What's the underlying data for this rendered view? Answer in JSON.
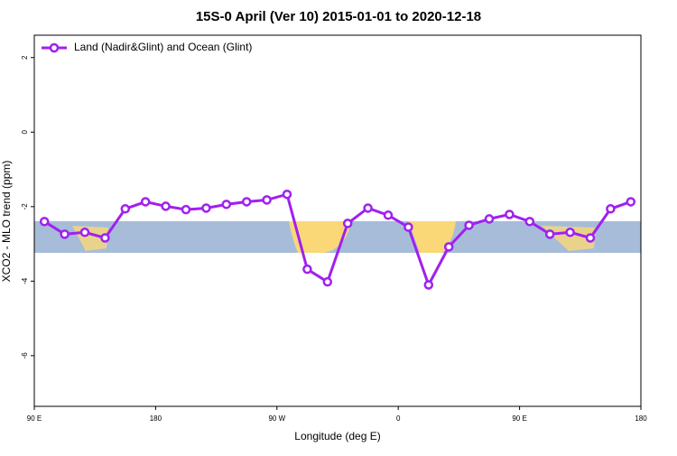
{
  "chart_data": {
    "type": "line",
    "title": "15S-0 April (Ver 10)   2015-01-01 to 2020-12-18",
    "x_label": "Longitude (deg E)",
    "y_label": "XCO2 - MLO trend (ppm)",
    "x": [
      97.5,
      112.5,
      127.5,
      142.5,
      157.5,
      172.5,
      187.5,
      202.5,
      217.5,
      232.5,
      247.5,
      262.5,
      277.5,
      292.5,
      307.5,
      322.5,
      337.5,
      352.5,
      367.5,
      382.5,
      397.5,
      412.5,
      427.5,
      442.5,
      457.5,
      472.5,
      487.5,
      502.5,
      517.5,
      532.5
    ],
    "series": [
      {
        "name": "Land (Nadir&Glint) and Ocean (Glint)",
        "color": "#a020f0",
        "values": [
          -2.4,
          -2.74,
          -2.69,
          -2.84,
          -2.06,
          -1.87,
          -1.99,
          -2.08,
          -2.04,
          -1.94,
          -1.87,
          -1.82,
          -1.67,
          -3.68,
          -4.02,
          -2.45,
          -2.04,
          -2.23,
          -2.55,
          -4.1,
          -3.08,
          -2.5,
          -2.33,
          -2.21,
          -2.4,
          -2.74,
          -2.69,
          -2.84,
          -2.06,
          -1.87
        ]
      }
    ],
    "xlim": [
      90,
      540
    ],
    "xticks": [
      {
        "value": 90,
        "label": "90 E"
      },
      {
        "value": 180,
        "label": "180"
      },
      {
        "value": 270,
        "label": "90 W"
      },
      {
        "value": 360,
        "label": "0"
      },
      {
        "value": 450,
        "label": "90 E"
      },
      {
        "value": 540,
        "label": "180"
      }
    ],
    "ylim": [
      -7.36,
      2.6
    ],
    "yticks": [
      2,
      0,
      -2,
      -4,
      -6
    ],
    "legend": "top-left"
  }
}
